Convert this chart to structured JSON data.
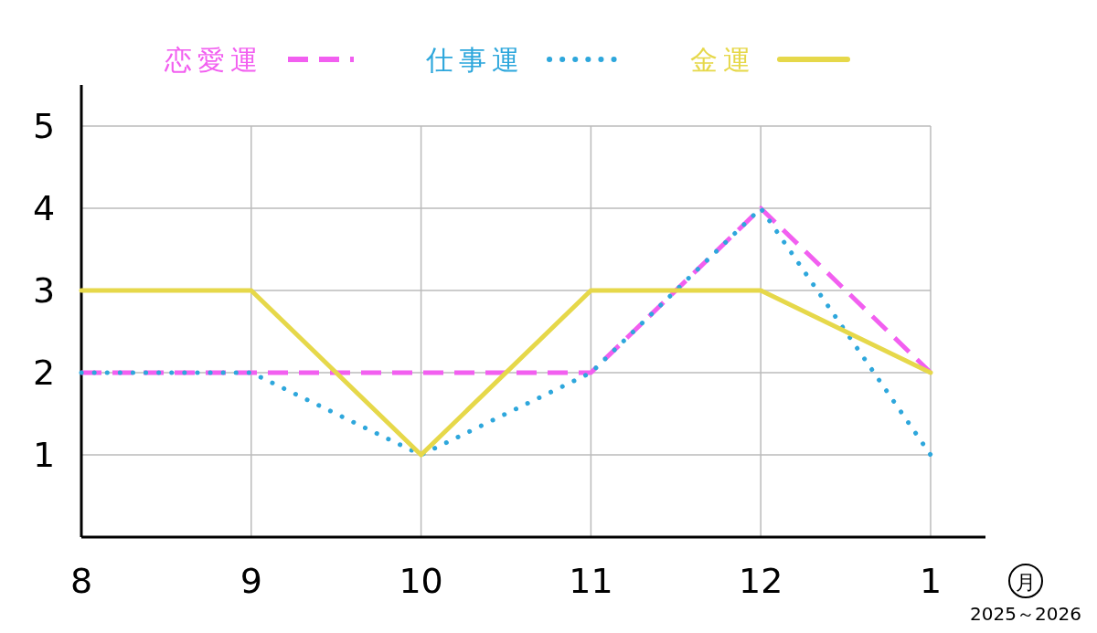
{
  "chart_data": {
    "type": "line",
    "categories": [
      "8",
      "9",
      "10",
      "11",
      "12",
      "1"
    ],
    "series": [
      {
        "name": "恋愛運",
        "color": "#f25ff0",
        "line_style": "dashed",
        "values": [
          2,
          2,
          2,
          2,
          4,
          2
        ]
      },
      {
        "name": "仕事運",
        "color": "#2ea7dc",
        "line_style": "dotted",
        "values": [
          2,
          2,
          1,
          2,
          4,
          1
        ]
      },
      {
        "name": "金運",
        "color": "#e6d84a",
        "line_style": "solid",
        "values": [
          3,
          3,
          1,
          3,
          3,
          2
        ]
      }
    ],
    "ylim": [
      0,
      5.5
    ],
    "yticks": [
      1,
      2,
      3,
      4,
      5
    ],
    "grid": true,
    "legend": "top",
    "marker": "none",
    "xlabel": "月",
    "annotations": [
      "2025～2026"
    ]
  }
}
